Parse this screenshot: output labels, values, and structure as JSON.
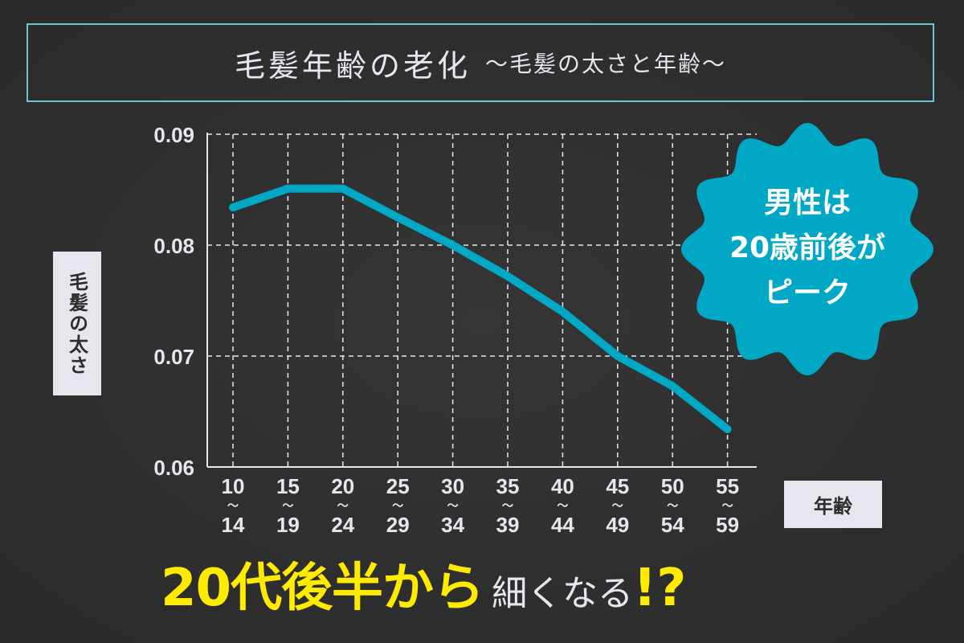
{
  "title": {
    "main": "毛髪年齢の老化",
    "sub": "〜毛髪の太さと年齢〜"
  },
  "colors": {
    "line": "#00a8c6",
    "badge": "#00a8c6",
    "headline": "#ffeb00",
    "title_border": "#6cc6d2",
    "background": "#2e2e2e"
  },
  "chart_data": {
    "type": "line",
    "xlabel": "年齢",
    "ylabel": "毛髪の太さ",
    "categories": [
      "10〜14",
      "15〜19",
      "20〜24",
      "25〜29",
      "30〜34",
      "35〜39",
      "40〜44",
      "45〜49",
      "50〜54",
      "55〜59"
    ],
    "category_labels": [
      [
        "10",
        "〜",
        "14"
      ],
      [
        "15",
        "〜",
        "19"
      ],
      [
        "20",
        "〜",
        "24"
      ],
      [
        "25",
        "〜",
        "29"
      ],
      [
        "30",
        "〜",
        "34"
      ],
      [
        "35",
        "〜",
        "39"
      ],
      [
        "40",
        "〜",
        "44"
      ],
      [
        "45",
        "〜",
        "49"
      ],
      [
        "50",
        "〜",
        "54"
      ],
      [
        "55",
        "〜",
        "59"
      ]
    ],
    "values": [
      0.0834,
      0.0851,
      0.0851,
      0.0825,
      0.08,
      0.0772,
      0.074,
      0.07,
      0.0673,
      0.0634
    ],
    "ylim": [
      0.06,
      0.09
    ],
    "yticks": [
      "0.06",
      "0.07",
      "0.08",
      "0.09"
    ],
    "grid": true,
    "grid_style": "dashed"
  },
  "badge": {
    "lines": [
      "男性は",
      "20歳前後が",
      "ピーク"
    ]
  },
  "headline": {
    "main": "20代後半から",
    "sub": "細くなる",
    "mark": "!?"
  }
}
